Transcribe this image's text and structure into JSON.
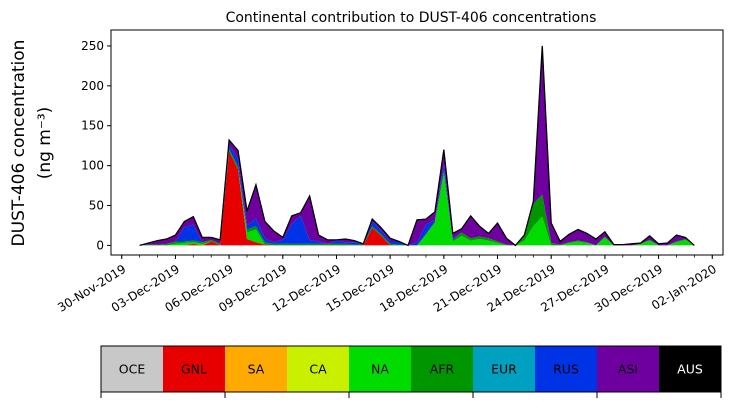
{
  "chart_data": {
    "type": "area",
    "stacked": true,
    "title": "Continental contribution to DUST-406 concentrations",
    "ylabel_line1": "DUST-406 concentration",
    "ylabel_line2": "(ng m⁻³)",
    "ylim": [
      -12,
      270
    ],
    "yticks": [
      0,
      50,
      100,
      150,
      200,
      250
    ],
    "xlim_days": [
      -1.6,
      32.6
    ],
    "xticks": [
      "30-Nov-2019",
      "03-Dec-2019",
      "06-Dec-2019",
      "09-Dec-2019",
      "12-Dec-2019",
      "15-Dec-2019",
      "18-Dec-2019",
      "21-Dec-2019",
      "24-Dec-2019",
      "27-Dec-2019",
      "30-Dec-2019",
      "02-Jan-2020"
    ],
    "grid": false,
    "x": [
      "01-Dec-2019 00:00",
      "01-Dec-2019 12:00",
      "02-Dec-2019 00:00",
      "02-Dec-2019 12:00",
      "03-Dec-2019 00:00",
      "03-Dec-2019 12:00",
      "04-Dec-2019 00:00",
      "04-Dec-2019 12:00",
      "05-Dec-2019 00:00",
      "05-Dec-2019 12:00",
      "06-Dec-2019 00:00",
      "06-Dec-2019 12:00",
      "07-Dec-2019 00:00",
      "07-Dec-2019 12:00",
      "08-Dec-2019 00:00",
      "08-Dec-2019 12:00",
      "09-Dec-2019 00:00",
      "09-Dec-2019 12:00",
      "10-Dec-2019 00:00",
      "10-Dec-2019 12:00",
      "11-Dec-2019 00:00",
      "11-Dec-2019 12:00",
      "12-Dec-2019 00:00",
      "12-Dec-2019 12:00",
      "13-Dec-2019 00:00",
      "13-Dec-2019 12:00",
      "14-Dec-2019 00:00",
      "14-Dec-2019 12:00",
      "15-Dec-2019 00:00",
      "15-Dec-2019 12:00",
      "16-Dec-2019 00:00",
      "16-Dec-2019 12:00",
      "17-Dec-2019 00:00",
      "17-Dec-2019 12:00",
      "18-Dec-2019 00:00",
      "18-Dec-2019 12:00",
      "19-Dec-2019 00:00",
      "19-Dec-2019 12:00",
      "20-Dec-2019 00:00",
      "20-Dec-2019 12:00",
      "21-Dec-2019 00:00",
      "21-Dec-2019 12:00",
      "22-Dec-2019 00:00",
      "22-Dec-2019 12:00",
      "23-Dec-2019 00:00",
      "23-Dec-2019 12:00",
      "24-Dec-2019 00:00",
      "24-Dec-2019 12:00",
      "25-Dec-2019 00:00",
      "25-Dec-2019 12:00",
      "26-Dec-2019 00:00",
      "26-Dec-2019 12:00",
      "27-Dec-2019 00:00",
      "27-Dec-2019 12:00",
      "28-Dec-2019 00:00",
      "28-Dec-2019 12:00",
      "29-Dec-2019 00:00",
      "29-Dec-2019 12:00",
      "30-Dec-2019 00:00",
      "30-Dec-2019 12:00",
      "31-Dec-2019 00:00",
      "31-Dec-2019 12:00",
      "01-Jan-2020 00:00"
    ],
    "series": [
      {
        "name": "OCE",
        "color": "#c8c8c8",
        "values": [
          0,
          0,
          0,
          0,
          0,
          0,
          0,
          0,
          0,
          0,
          0,
          0,
          0,
          0,
          0,
          0,
          0,
          0,
          0,
          0,
          0,
          0,
          0,
          0,
          0,
          0,
          0,
          0,
          0,
          0,
          0,
          0,
          0,
          0,
          0,
          0,
          0,
          0,
          0,
          0,
          0,
          0,
          0,
          0,
          0,
          0,
          0,
          0,
          0,
          0,
          0,
          0,
          0,
          0,
          0,
          0,
          0,
          0,
          0,
          0,
          0,
          0,
          0
        ]
      },
      {
        "name": "GNL",
        "color": "#e60000",
        "values": [
          0,
          0,
          0,
          0,
          0,
          0,
          2,
          0,
          5,
          0,
          118,
          95,
          8,
          4,
          1,
          0,
          0,
          0,
          0,
          0,
          0,
          0,
          0,
          0,
          0,
          0,
          22,
          12,
          0,
          0,
          0,
          0,
          0,
          0,
          0,
          0,
          0,
          0,
          0,
          0,
          0,
          0,
          0,
          0,
          0,
          0,
          0,
          0,
          0,
          0,
          0,
          0,
          0,
          0,
          0,
          0,
          0,
          0,
          0,
          0,
          0,
          0,
          0
        ]
      },
      {
        "name": "SA",
        "color": "#ffaa00",
        "values": [
          0,
          0,
          0,
          0,
          0,
          0,
          0,
          0,
          0,
          0,
          0,
          0,
          0,
          0,
          0,
          0,
          0,
          0,
          0,
          0,
          0,
          0,
          0,
          0,
          0,
          0,
          0,
          0,
          0,
          0,
          0,
          0,
          0,
          0,
          0,
          0,
          0,
          0,
          0,
          0,
          0,
          0,
          0,
          0,
          0,
          0,
          0,
          0,
          0,
          0,
          0,
          0,
          0,
          0,
          0,
          0,
          0,
          0,
          0,
          0,
          0,
          0,
          0
        ]
      },
      {
        "name": "CA",
        "color": "#c8f000",
        "values": [
          0,
          0,
          0,
          0,
          0,
          0,
          0,
          0,
          0,
          0,
          0,
          0,
          0,
          0,
          0,
          0,
          0,
          0,
          0,
          0,
          0,
          0,
          0,
          0,
          0,
          0,
          0,
          0,
          0,
          0,
          0,
          0,
          0,
          0,
          0,
          0,
          0,
          0,
          0,
          0,
          0,
          0,
          0,
          0,
          0,
          0,
          0,
          0,
          0,
          0,
          0,
          0,
          0,
          0,
          0,
          0,
          0,
          0,
          0,
          0,
          0,
          0,
          0
        ]
      },
      {
        "name": "NA",
        "color": "#00dc00",
        "values": [
          0,
          0,
          0,
          0,
          2,
          3,
          2,
          2,
          0,
          0,
          0,
          0,
          8,
          16,
          0,
          0,
          0,
          0,
          0,
          0,
          0,
          0,
          0,
          0,
          0,
          0,
          0,
          0,
          0,
          0,
          0,
          0,
          14,
          28,
          90,
          5,
          12,
          6,
          8,
          6,
          3,
          0,
          0,
          6,
          24,
          36,
          0,
          0,
          3,
          5,
          3,
          0,
          10,
          0,
          0,
          0,
          2,
          6,
          0,
          0,
          4,
          7,
          0
        ]
      },
      {
        "name": "AFR",
        "color": "#009600",
        "values": [
          0,
          1,
          1,
          2,
          3,
          2,
          2,
          2,
          2,
          2,
          3,
          4,
          4,
          4,
          3,
          2,
          2,
          2,
          2,
          2,
          2,
          2,
          2,
          2,
          1,
          1,
          2,
          2,
          2,
          1,
          0,
          0,
          0,
          2,
          4,
          2,
          4,
          3,
          3,
          3,
          2,
          1,
          0,
          5,
          28,
          28,
          3,
          1,
          1,
          1,
          1,
          0,
          1,
          0,
          0,
          0,
          0,
          1,
          0,
          0,
          1,
          1,
          0
        ]
      },
      {
        "name": "EUR",
        "color": "#00a0c0",
        "values": [
          0,
          0,
          0,
          0,
          0,
          0,
          0,
          0,
          0,
          0,
          0,
          0,
          0,
          0,
          0,
          0,
          0,
          0,
          0,
          0,
          0,
          0,
          0,
          0,
          0,
          0,
          0,
          0,
          0,
          0,
          0,
          0,
          0,
          0,
          0,
          0,
          0,
          0,
          0,
          0,
          0,
          0,
          0,
          0,
          0,
          0,
          0,
          0,
          0,
          0,
          0,
          0,
          0,
          0,
          0,
          0,
          0,
          0,
          0,
          0,
          0,
          0,
          0
        ]
      },
      {
        "name": "RUS",
        "color": "#0032e6",
        "values": [
          0,
          0,
          0,
          0,
          0,
          18,
          20,
          0,
          0,
          0,
          5,
          10,
          5,
          10,
          5,
          2,
          5,
          25,
          35,
          5,
          3,
          0,
          4,
          2,
          3,
          1,
          6,
          5,
          3,
          4,
          0,
          4,
          12,
          2,
          8,
          2,
          0,
          0,
          0,
          0,
          0,
          0,
          0,
          0,
          0,
          0,
          0,
          0,
          0,
          0,
          0,
          0,
          0,
          0,
          0,
          0,
          0,
          0,
          0,
          0,
          0,
          0,
          0
        ]
      },
      {
        "name": "ASI",
        "color": "#6e00a0",
        "values": [
          0,
          2,
          5,
          6,
          8,
          7,
          10,
          6,
          3,
          5,
          6,
          10,
          18,
          42,
          21,
          14,
          3,
          10,
          4,
          55,
          8,
          5,
          1,
          4,
          2,
          0,
          3,
          3,
          4,
          0,
          0,
          28,
          7,
          10,
          18,
          6,
          5,
          28,
          13,
          6,
          23,
          8,
          0,
          2,
          3,
          186,
          25,
          4,
          10,
          14,
          11,
          8,
          6,
          1,
          1,
          2,
          1,
          5,
          2,
          3,
          8,
          2,
          0
        ]
      },
      {
        "name": "AUS",
        "color": "#000000",
        "values": [
          0,
          0,
          0,
          0,
          0,
          0,
          0,
          0,
          0,
          0,
          0,
          0,
          0,
          0,
          0,
          0,
          0,
          0,
          0,
          0,
          0,
          0,
          0,
          0,
          0,
          0,
          0,
          0,
          0,
          0,
          0,
          0,
          0,
          0,
          0,
          0,
          0,
          0,
          0,
          0,
          0,
          0,
          0,
          0,
          0,
          0,
          0,
          0,
          0,
          0,
          0,
          0,
          0,
          0,
          0,
          0,
          0,
          0,
          0,
          0,
          0,
          0,
          0
        ]
      }
    ],
    "legend": {
      "placement": "bottom",
      "items": [
        {
          "label": "OCE",
          "color": "#c8c8c8",
          "text_color": "#000000"
        },
        {
          "label": "GNL",
          "color": "#e60000",
          "text_color": "#000000"
        },
        {
          "label": "SA",
          "color": "#ffaa00",
          "text_color": "#000000"
        },
        {
          "label": "CA",
          "color": "#c8f000",
          "text_color": "#000000"
        },
        {
          "label": "NA",
          "color": "#00dc00",
          "text_color": "#000000"
        },
        {
          "label": "AFR",
          "color": "#009600",
          "text_color": "#000000"
        },
        {
          "label": "EUR",
          "color": "#00a0c0",
          "text_color": "#000000"
        },
        {
          "label": "RUS",
          "color": "#0032e6",
          "text_color": "#000000"
        },
        {
          "label": "ASI",
          "color": "#6e00a0",
          "text_color": "#000000"
        },
        {
          "label": "AUS",
          "color": "#000000",
          "text_color": "#ffffff"
        }
      ]
    }
  }
}
